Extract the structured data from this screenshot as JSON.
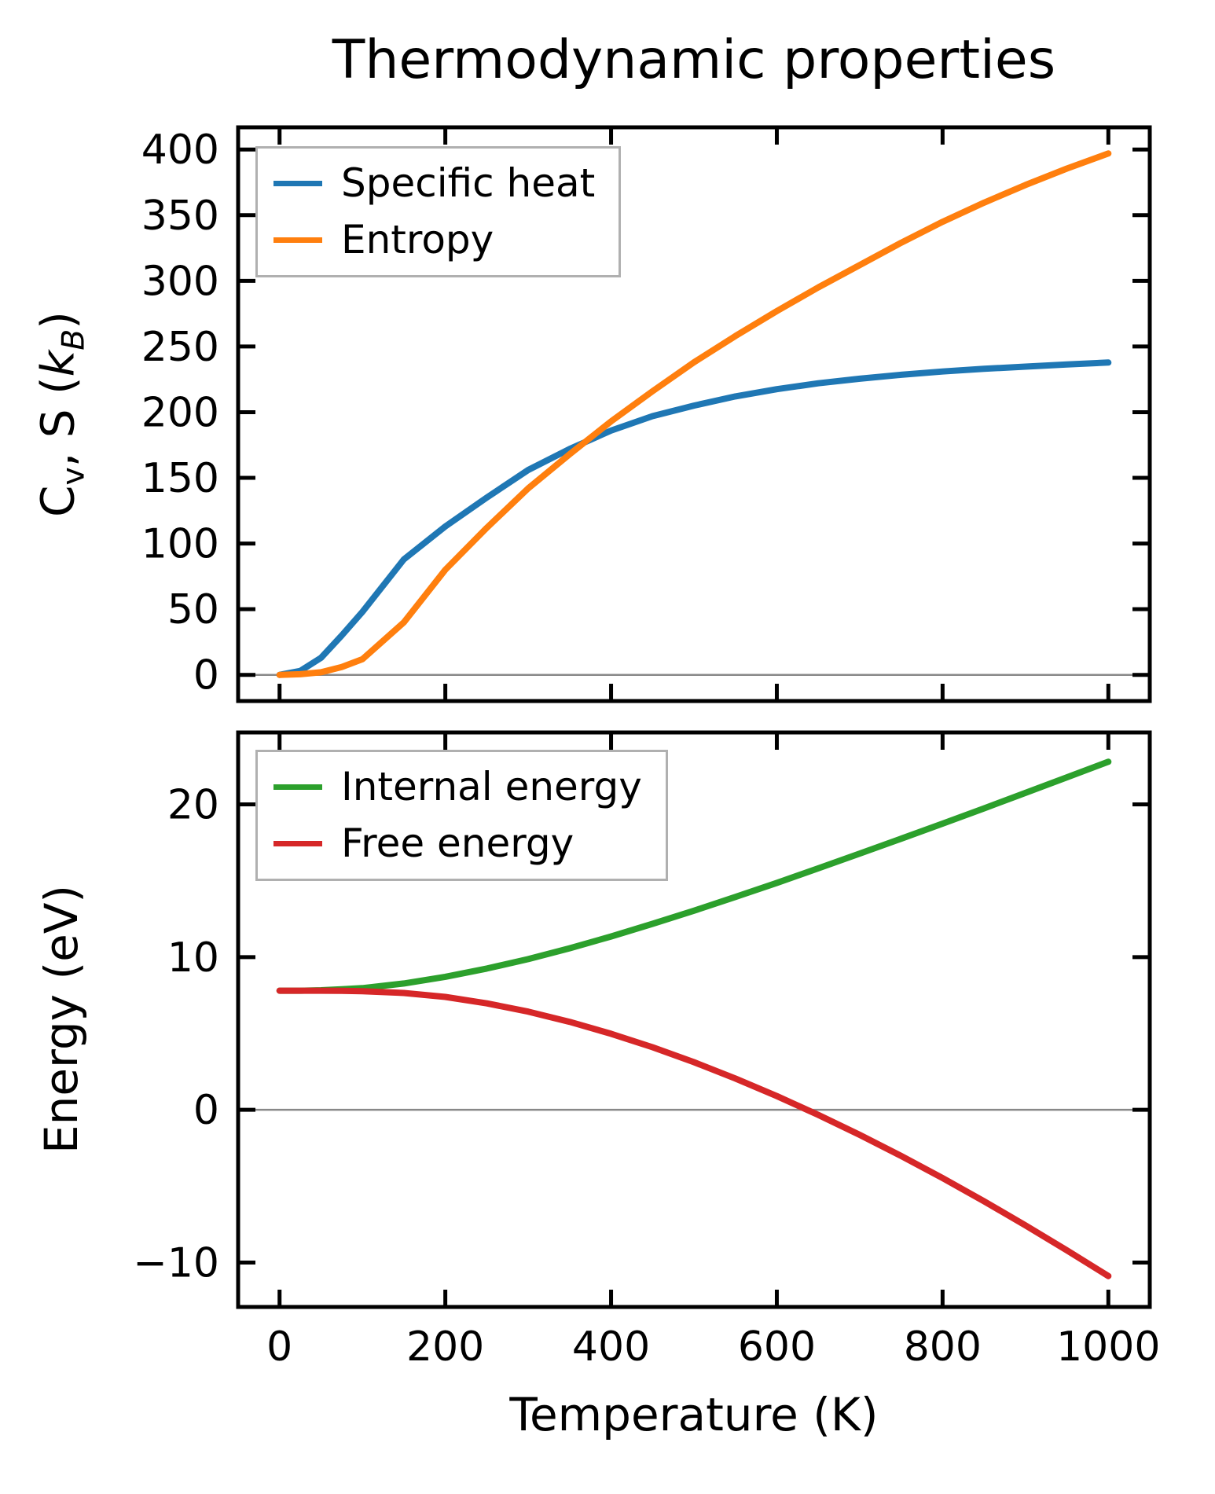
{
  "figure": {
    "title": "Thermodynamic properties",
    "background": "#ffffff"
  },
  "labels": {
    "xlabel": "Temperature (K)",
    "ylabel_bottom": "Energy (eV)",
    "ylabel_top_parts": {
      "main": "C",
      "main_sub": "v",
      "mid": ", S (",
      "sym": "k",
      "sym_sub": "B",
      "end": ")"
    }
  },
  "colors": {
    "specific_heat": "#1f77b4",
    "entropy": "#ff7f0e",
    "internal_energy": "#2ca02c",
    "free_energy": "#d62728",
    "zero_line": "#888888",
    "spine": "#000000",
    "legend_edge": "#b0b0b0"
  },
  "chart_data": [
    {
      "type": "line",
      "panel": "top",
      "ylabel": "C_v, S (k_B)",
      "xlim": [
        -50,
        1050
      ],
      "ylim": [
        -19.9,
        416.9
      ],
      "x_ticks": [
        0,
        200,
        400,
        600,
        800,
        1000
      ],
      "x_tick_labels": [
        "0",
        "200",
        "400",
        "600",
        "800",
        "1000"
      ],
      "show_x_tick_labels": false,
      "y_ticks": [
        0,
        50,
        100,
        150,
        200,
        250,
        300,
        350,
        400
      ],
      "y_tick_labels": [
        "0",
        "50",
        "100",
        "150",
        "200",
        "250",
        "300",
        "350",
        "400"
      ],
      "zero_line": 0,
      "legend_position": "upper left",
      "x": [
        0,
        25,
        50,
        75,
        100,
        150,
        200,
        250,
        300,
        350,
        400,
        450,
        500,
        550,
        600,
        650,
        700,
        750,
        800,
        850,
        900,
        950,
        1000
      ],
      "series": [
        {
          "name": "Specific heat",
          "color": "#1f77b4",
          "values": [
            0,
            3,
            13,
            30,
            48,
            88,
            113,
            135,
            156,
            172,
            186,
            197,
            205,
            212,
            217.5,
            222,
            225.5,
            228.5,
            231,
            233,
            234.7,
            236.3,
            237.8
          ]
        },
        {
          "name": "Entropy",
          "color": "#ff7f0e",
          "values": [
            0,
            0.5,
            2,
            6,
            12,
            40,
            80,
            112,
            142,
            168,
            193,
            216,
            238,
            258,
            277,
            295,
            312,
            329,
            345,
            359.5,
            373,
            385.5,
            397
          ]
        }
      ]
    },
    {
      "type": "line",
      "panel": "bottom",
      "ylabel": "Energy (eV)",
      "xlabel": "Temperature (K)",
      "xlim": [
        -50,
        1050
      ],
      "ylim": [
        -12.91,
        24.71
      ],
      "x_ticks": [
        0,
        200,
        400,
        600,
        800,
        1000
      ],
      "x_tick_labels": [
        "0",
        "200",
        "400",
        "600",
        "800",
        "1000"
      ],
      "show_x_tick_labels": true,
      "y_ticks": [
        20,
        10,
        0,
        -10
      ],
      "y_tick_labels": [
        "20",
        "10",
        "0",
        "−10"
      ],
      "zero_line": 0,
      "legend_position": "upper left",
      "x": [
        0,
        25,
        50,
        75,
        100,
        150,
        200,
        250,
        300,
        350,
        400,
        450,
        500,
        550,
        600,
        650,
        700,
        750,
        800,
        850,
        900,
        950,
        1000
      ],
      "series": [
        {
          "name": "Internal energy",
          "color": "#2ca02c",
          "values": [
            7.8,
            7.8,
            7.83,
            7.89,
            7.97,
            8.27,
            8.71,
            9.25,
            9.87,
            10.58,
            11.35,
            12.18,
            13.04,
            13.94,
            14.86,
            15.81,
            16.78,
            17.75,
            18.74,
            19.74,
            20.75,
            21.77,
            22.79
          ]
        },
        {
          "name": "Free energy",
          "color": "#d62728",
          "values": [
            7.8,
            7.8,
            7.8,
            7.79,
            7.77,
            7.65,
            7.39,
            6.97,
            6.43,
            5.76,
            4.98,
            4.1,
            3.12,
            2.05,
            0.9,
            -0.33,
            -1.64,
            -3.02,
            -4.47,
            -5.99,
            -7.57,
            -9.2,
            -10.89
          ]
        }
      ]
    }
  ]
}
